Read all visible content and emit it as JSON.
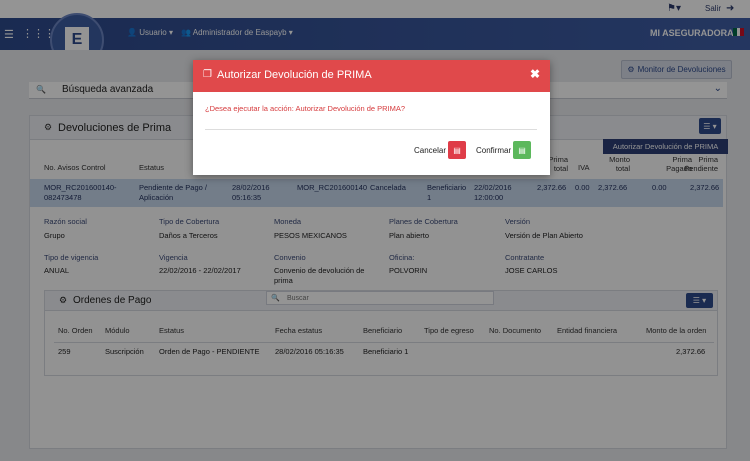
{
  "topbar": {
    "flag_icon": "flag-icon",
    "exit_label": "Salir",
    "exit_icon": "logout-icon"
  },
  "header": {
    "user_menu": "Usuario",
    "admin_menu": "Administrador de Easpayb",
    "brand": "MI ASEGURADORA",
    "flag_colors": [
      "#006847",
      "#ffffff",
      "#ce1126"
    ]
  },
  "monitor_button": "Monitor de Devoluciones",
  "search": {
    "label": "Búsqueda avanzada"
  },
  "panel": {
    "title": "Devoluciones de Prima",
    "dropdown_item": "Autorizar Devolución de PRIMA",
    "columns": [
      "No. Avisos Control",
      "Estatus",
      "Prima total",
      "IVA",
      "Monto total",
      "Prima Pagada",
      "Prima Pendiente"
    ],
    "row": {
      "avisos": "MOR_RC201600140-082473478",
      "estatus": "Pendiente de Pago / Aplicación",
      "fecha": "28/02/2016 05:16:35",
      "control": "MOR_RC201600140",
      "estado": "Cancelada",
      "beneficiario": "Beneficiario 1",
      "fecha2": "22/02/2016 12:00:00",
      "prima_total": "2,372.66",
      "iva": "0.00",
      "monto_total": "2,372.66",
      "prima_pagada": "0.00",
      "prima_pendiente": "2,372.66"
    },
    "details": {
      "razon_social_label": "Razón social",
      "razon_social": "Grupo",
      "cobertura_label": "Tipo de Cobertura",
      "cobertura": "Daños a Terceros",
      "moneda_label": "Moneda",
      "moneda": "PESOS MEXICANOS",
      "planes_label": "Planes de Cobertura",
      "planes": "Plan abierto",
      "version_label": "Versión",
      "version": "Versión de Plan Abierto",
      "vigencia_tipo_label": "Tipo de vigencia",
      "vigencia_tipo": "ANUAL",
      "vigencia_label": "Vigencia",
      "vigencia": "22/02/2016 - 22/02/2017",
      "convenio_label": "Convenio",
      "convenio": "Convenio de devolución de prima",
      "oficina_label": "Oficina:",
      "oficina": "POLVORIN",
      "contratante_label": "Contratante",
      "contratante": "JOSE CARLOS"
    }
  },
  "ordenes": {
    "title": "Ordenes de Pago",
    "search_placeholder": "Buscar",
    "columns": [
      "No. Orden",
      "Módulo",
      "Estatus",
      "Fecha estatus",
      "Beneficiario",
      "Tipo de egreso",
      "No. Documento",
      "Entidad financiera",
      "Monto de la orden"
    ],
    "row": {
      "no_orden": "259",
      "modulo": "Suscripción",
      "estatus": "Orden de Pago - PENDIENTE",
      "fecha": "28/02/2016 05:16:35",
      "beneficiario": "Beneficiario 1",
      "monto": "2,372.66"
    }
  },
  "modal": {
    "title": "Autorizar Devolución de PRIMA",
    "message": "¿Desea ejecutar la acción: Autorizar Devolución de PRIMA?",
    "cancel_label": "Cancelar",
    "confirm_label": "Confirmar",
    "header_color": "#e0494b"
  }
}
